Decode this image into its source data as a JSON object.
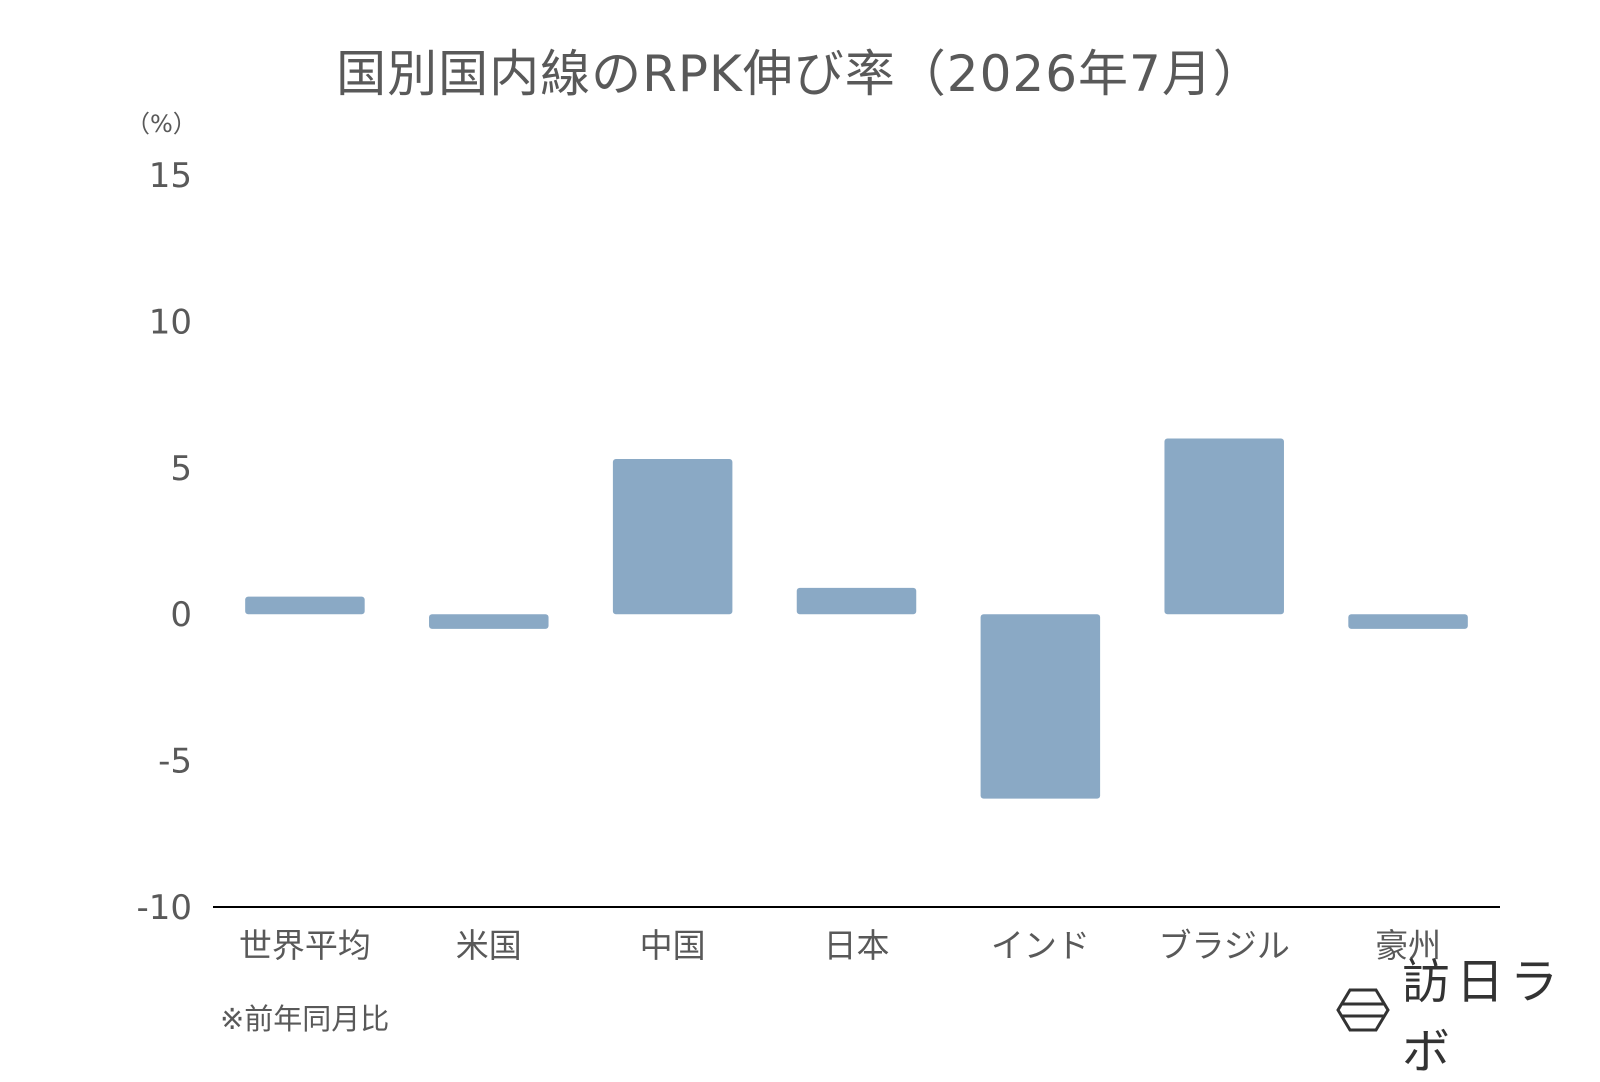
{
  "chart_data": {
    "type": "bar",
    "title": "国別国内線のRPK伸び率（2026年7月）",
    "ylabel": "（%）",
    "xlabel": "",
    "categories": [
      "世界平均",
      "米国",
      "中国",
      "日本",
      "インド",
      "ブラジル",
      "豪州"
    ],
    "values": [
      0.6,
      -0.5,
      5.3,
      0.9,
      -6.3,
      6.0,
      -0.5
    ],
    "ylim": [
      -10,
      15
    ],
    "yticks": [
      15,
      10,
      5,
      0,
      -5,
      -10
    ],
    "grid": false,
    "legend": "none",
    "bar_color": "#8aa9c5"
  },
  "footnote": "※前年同月比",
  "brand": {
    "text": "訪日ラボ",
    "icon": "hexagon-logo-icon"
  }
}
